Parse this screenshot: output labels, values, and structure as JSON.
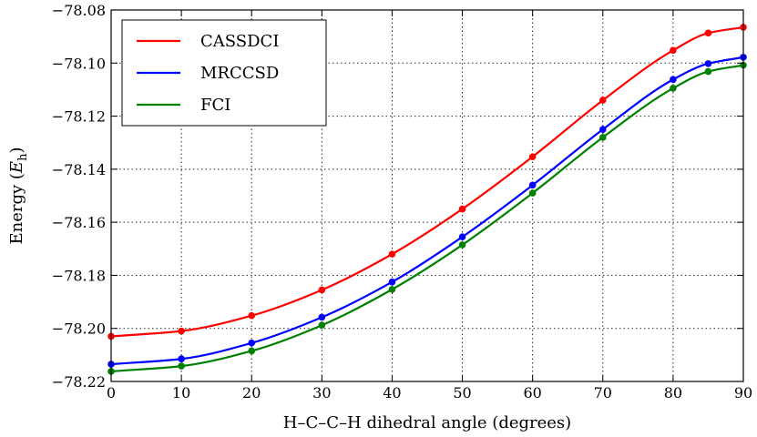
{
  "chart_data": {
    "type": "line",
    "title": "",
    "xlabel": "H–C–C–H dihedral angle (degrees)",
    "ylabel": "Energy (E_h)",
    "ylabel_parts": {
      "prefix": "Energy (",
      "symbol": "E",
      "subscript": "h",
      "suffix": ")"
    },
    "xlim": [
      0,
      90
    ],
    "ylim": [
      -78.22,
      -78.08
    ],
    "xticks": [
      0,
      10,
      20,
      30,
      40,
      50,
      60,
      70,
      80,
      90
    ],
    "yticks": [
      -78.22,
      -78.2,
      -78.18,
      -78.16,
      -78.14,
      -78.12,
      -78.1,
      -78.08
    ],
    "ytick_labels": [
      "−78.22",
      "−78.20",
      "−78.18",
      "−78.16",
      "−78.14",
      "−78.12",
      "−78.10",
      "−78.08"
    ],
    "xtick_labels": [
      "0",
      "10",
      "20",
      "30",
      "40",
      "50",
      "60",
      "70",
      "80",
      "90"
    ],
    "grid": true,
    "legend_position": "top-left",
    "x": [
      0,
      10,
      20,
      30,
      40,
      50,
      60,
      70,
      80,
      85,
      90
    ],
    "series": [
      {
        "name": "CASSDCI",
        "color": "#ff0000",
        "values": [
          -78.203,
          -78.201,
          -78.1952,
          -78.1855,
          -78.172,
          -78.155,
          -78.1353,
          -78.114,
          -78.0952,
          -78.0887,
          -78.0865
        ]
      },
      {
        "name": "MRCCSD",
        "color": "#0000ff",
        "values": [
          -78.2135,
          -78.2115,
          -78.2055,
          -78.1958,
          -78.1825,
          -78.1655,
          -78.146,
          -78.125,
          -78.1062,
          -78.1002,
          -78.0978
        ]
      },
      {
        "name": "FCI",
        "color": "#008000",
        "values": [
          -78.2162,
          -78.2142,
          -78.2085,
          -78.1988,
          -78.1853,
          -78.1685,
          -78.149,
          -78.128,
          -78.1095,
          -78.1032,
          -78.1008
        ]
      }
    ]
  }
}
